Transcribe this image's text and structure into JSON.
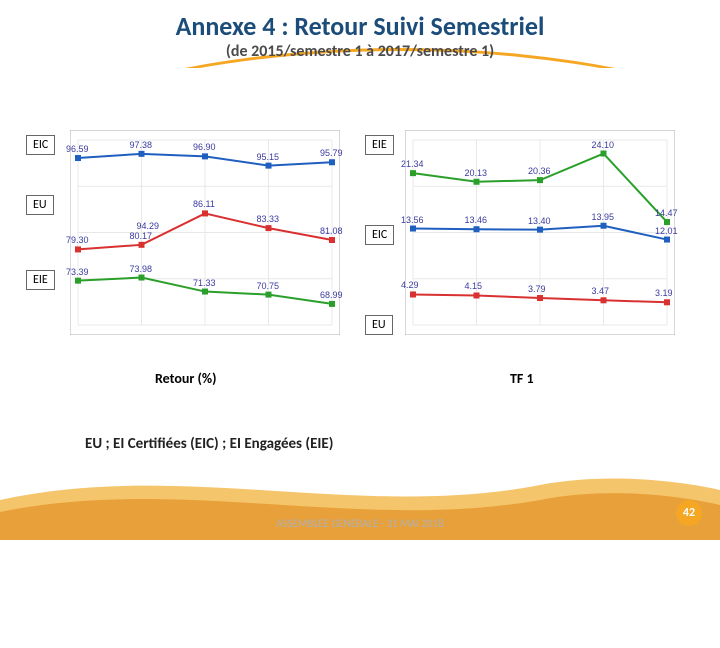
{
  "title": "Annexe 4 : Retour Suivi Semestriel",
  "subtitle": "(de 2015/semestre 1 à 2017/semestre 1)",
  "legend_note": "EU ; EI Certifiées (EIC) ; EI Engagées (EIE)",
  "footer": "ASSEMBLEE GENERALE - 31 MAI 2018",
  "page_number": "42",
  "axis_left": "Retour (%)",
  "axis_right": "TF 1",
  "boxes": {
    "eic_l": "EIC",
    "eu_l": "EU",
    "eie_l": "EIE",
    "eie_r": "EIE",
    "eic_r": "EIC",
    "eu_r": "EU"
  },
  "colors": {
    "eic": "#1f5fbf",
    "eu": "#d93030",
    "eie": "#2aa02a",
    "label": "#3a3a9e",
    "grid": "#e8e8e8",
    "border": "#b0b0b0",
    "wave1": "#e8a13a",
    "wave2": "#f5c56b"
  },
  "chart_left": {
    "ylim": [
      65,
      100
    ],
    "n": 5,
    "series": {
      "eic": {
        "values": [
          96.59,
          97.38,
          96.9,
          95.15,
          95.79
        ],
        "labels": [
          "96.59",
          "97.38",
          "96.90",
          "95.15",
          "95.79"
        ]
      },
      "eu": {
        "values": [
          79.3,
          80.17,
          86.11,
          83.33,
          81.08
        ],
        "labels": [
          "79.30",
          "80.17",
          "86.11",
          "83.33",
          "81.08"
        ],
        "mid_label": "94.29"
      },
      "eie": {
        "values": [
          73.39,
          73.98,
          71.33,
          70.75,
          68.99
        ],
        "labels": [
          "73.39",
          "73.98",
          "71.33",
          "70.75",
          "68.99"
        ]
      }
    }
  },
  "chart_right": {
    "ylim": [
      0,
      26
    ],
    "n": 5,
    "series": {
      "eie": {
        "values": [
          21.34,
          20.13,
          20.36,
          24.1,
          14.47
        ],
        "labels": [
          "21.34",
          "20.13",
          "20.36",
          "24.10",
          "14.47"
        ]
      },
      "eic": {
        "values": [
          13.56,
          13.46,
          13.4,
          13.95,
          12.01
        ],
        "labels": [
          "13.56",
          "13.46",
          "13.40",
          "13.95",
          "12.01"
        ]
      },
      "eu": {
        "values": [
          4.29,
          4.15,
          3.79,
          3.47,
          3.19
        ],
        "labels": [
          "4.29",
          "4.15",
          "3.79",
          "3.47",
          "3.19"
        ]
      }
    }
  }
}
